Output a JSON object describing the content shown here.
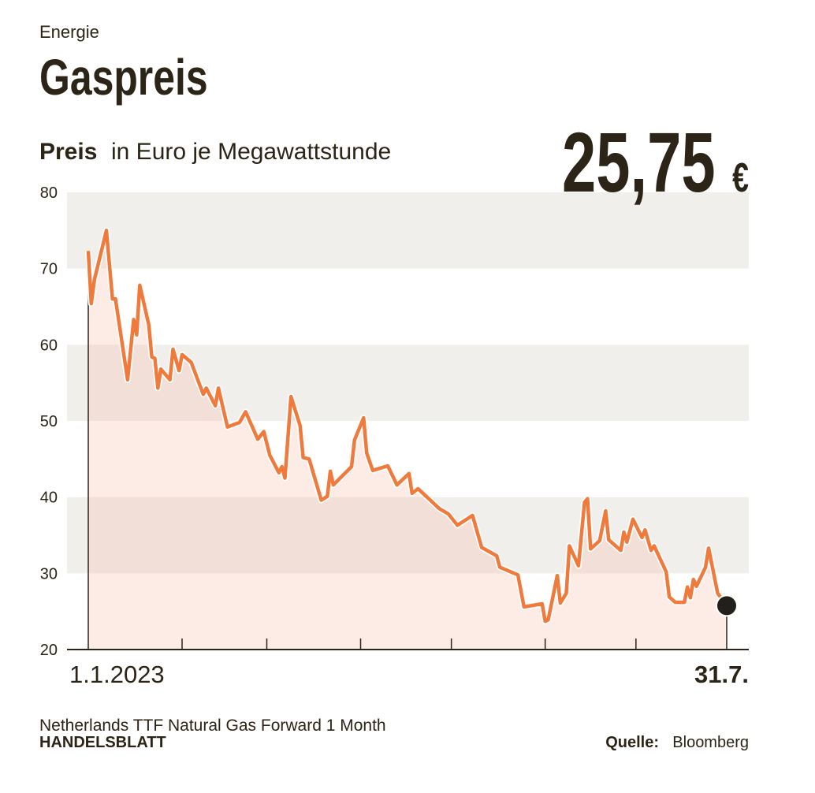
{
  "chart_data": {
    "type": "line",
    "kicker": "Energie",
    "title": "Gaspreis",
    "subtitle_bold": "Preis",
    "subtitle": "in Euro je Megawattstunde",
    "note": "Netherlands TTF Natural Gas Forward 1 Month",
    "brand": "HANDELSBLATT",
    "source_label": "Quelle:",
    "source": "Bloomberg",
    "color": "#f07a3c",
    "x": [
      "2023-01-01",
      "2023-01-02",
      "2023-01-03",
      "2023-01-07",
      "2023-01-09",
      "2023-01-10",
      "2023-01-14",
      "2023-01-16",
      "2023-01-17",
      "2023-01-18",
      "2023-01-21",
      "2023-01-22",
      "2023-01-23",
      "2023-01-24",
      "2023-01-25",
      "2023-01-28",
      "2023-01-29",
      "2023-01-31",
      "2023-02-01",
      "2023-02-04",
      "2023-02-08",
      "2023-02-09",
      "2023-02-12",
      "2023-02-13",
      "2023-02-16",
      "2023-02-20",
      "2023-02-22",
      "2023-02-26",
      "2023-02-28",
      "2023-03-02",
      "2023-03-05",
      "2023-03-06",
      "2023-03-07",
      "2023-03-09",
      "2023-03-12",
      "2023-03-13",
      "2023-03-15",
      "2023-03-19",
      "2023-03-21",
      "2023-03-22",
      "2023-03-23",
      "2023-03-29",
      "2023-03-30",
      "2023-04-02",
      "2023-04-03",
      "2023-04-05",
      "2023-04-10",
      "2023-04-13",
      "2023-04-17",
      "2023-04-18",
      "2023-04-20",
      "2023-04-27",
      "2023-04-30",
      "2023-05-03",
      "2023-05-08",
      "2023-05-11",
      "2023-05-16",
      "2023-05-17",
      "2023-05-23",
      "2023-05-25",
      "2023-05-31",
      "2023-06-01",
      "2023-06-02",
      "2023-06-05",
      "2023-06-06",
      "2023-06-08",
      "2023-06-09",
      "2023-06-12",
      "2023-06-14",
      "2023-06-15",
      "2023-06-16",
      "2023-06-19",
      "2023-06-21",
      "2023-06-22",
      "2023-06-26",
      "2023-06-27",
      "2023-06-28",
      "2023-06-30",
      "2023-07-03",
      "2023-07-04",
      "2023-07-06",
      "2023-07-07",
      "2023-07-11",
      "2023-07-12",
      "2023-07-14",
      "2023-07-17",
      "2023-07-18",
      "2023-07-19",
      "2023-07-20",
      "2023-07-21",
      "2023-07-24",
      "2023-07-25",
      "2023-07-28",
      "2023-07-31"
    ],
    "values": [
      72.3,
      65.4,
      68.5,
      75.0,
      66,
      66,
      55.4,
      63.3,
      61.3,
      67.8,
      62.6,
      58.4,
      58.2,
      54.3,
      56.8,
      55.4,
      59.4,
      56.6,
      58.7,
      57.7,
      53.5,
      54.3,
      52.0,
      54.3,
      49.2,
      49.8,
      51.2,
      47.6,
      48.6,
      45.5,
      43.2,
      44.0,
      42.5,
      53.2,
      49.4,
      45.2,
      45.0,
      39.6,
      40.1,
      43.4,
      41.6,
      44.0,
      47.5,
      50.4,
      45.8,
      43.5,
      44.1,
      41.6,
      43.1,
      40.5,
      41.1,
      38.5,
      37.8,
      36.3,
      37.6,
      33.4,
      32.3,
      30.8,
      29.8,
      25.6,
      26.0,
      23.7,
      23.9,
      29.7,
      26.1,
      27.4,
      33.6,
      31.0,
      39.3,
      39.8,
      33.2,
      34.3,
      38.2,
      34.4,
      33.0,
      35.4,
      34.1,
      37.1,
      34.7,
      35.7,
      33.0,
      33.6,
      30.2,
      26.9,
      26.2,
      26.2,
      28.2,
      26.8,
      29.2,
      28.3,
      30.8,
      33.3,
      27.4,
      25.75
    ],
    "value_labels": [
      null,
      null,
      null,
      null,
      null,
      null,
      null,
      null,
      null,
      null,
      null,
      null,
      null,
      null,
      null,
      null,
      null,
      null,
      null,
      null,
      null,
      null,
      null,
      null,
      null,
      null,
      null,
      null,
      null,
      null,
      null,
      null,
      null,
      null,
      null,
      null,
      null,
      null,
      null,
      null,
      null,
      null,
      null,
      null,
      null,
      null,
      null,
      null,
      null,
      null,
      null,
      null,
      null,
      null,
      null,
      null,
      null,
      null,
      null,
      null,
      null,
      null,
      null,
      null,
      null,
      null,
      null,
      null,
      null,
      null,
      null,
      null,
      null,
      null,
      null,
      null,
      null,
      null,
      null,
      null,
      null,
      null,
      null,
      null,
      null,
      null,
      null,
      null,
      null,
      null,
      null,
      null,
      null,
      "25,75 €"
    ],
    "xlim": [
      "2023-01-01",
      "2023-07-31"
    ],
    "xticks": [
      {
        "value": "2023-01-01",
        "label": "1.1.2023"
      },
      "2023-02-01",
      "2023-03-01",
      "2023-04-01",
      "2023-05-01",
      "2023-06-01",
      "2023-07-01",
      {
        "value": "2023-07-31",
        "label": "31.7."
      }
    ],
    "ylim": [
      20,
      80
    ],
    "yticks": [
      20,
      30,
      40,
      50,
      60,
      70,
      80
    ],
    "bands": true
  }
}
